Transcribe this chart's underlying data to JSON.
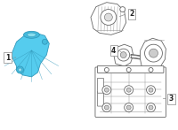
{
  "bg_color": "#ffffff",
  "part1_color": "#55ccee",
  "part1_edge": "#3399bb",
  "part_line_color": "#666666",
  "part_line_color2": "#999999",
  "label_color": "#222222",
  "figsize": [
    2.0,
    1.47
  ],
  "dpi": 100,
  "xlim": [
    0,
    200
  ],
  "ylim": [
    0,
    147
  ]
}
